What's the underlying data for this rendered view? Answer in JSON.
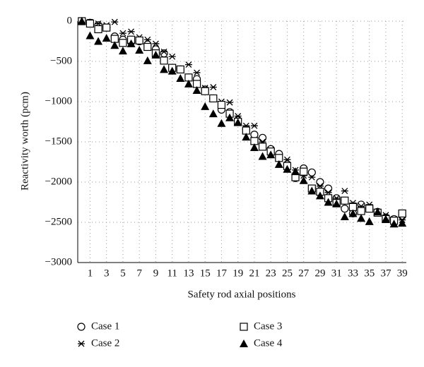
{
  "chart_data": {
    "type": "scatter",
    "x_label": "Safety rod axial positions",
    "y_label": "Reactivity worth (pcm)",
    "x": [
      0,
      1,
      2,
      3,
      4,
      5,
      6,
      7,
      8,
      9,
      10,
      11,
      12,
      13,
      14,
      15,
      16,
      17,
      18,
      19,
      20,
      21,
      22,
      23,
      24,
      25,
      26,
      27,
      28,
      29,
      30,
      31,
      32,
      33,
      34,
      35,
      36,
      37,
      38,
      39
    ],
    "xlim": [
      -0.5,
      39.5
    ],
    "xticks": [
      1,
      3,
      5,
      7,
      9,
      11,
      13,
      15,
      17,
      19,
      21,
      23,
      25,
      27,
      29,
      31,
      33,
      35,
      37,
      39
    ],
    "ylim": [
      -3000,
      0
    ],
    "yticks": [
      {
        "value": -3000,
        "label": "−3000"
      },
      {
        "value": -2500,
        "label": "−2500"
      },
      {
        "value": -2000,
        "label": "−2000"
      },
      {
        "value": -1500,
        "label": "−1500"
      },
      {
        "value": -1000,
        "label": "−1000"
      },
      {
        "value": -500,
        "label": "−500"
      },
      0
    ],
    "grid": true,
    "legend": "bottom",
    "series": [
      {
        "name": "Case 1",
        "color": "#000000",
        "marker": "circle",
        "values": [
          0,
          -20,
          -50,
          -80,
          -190,
          -230,
          -260,
          -250,
          -290,
          -350,
          -400,
          -580,
          -600,
          -700,
          -720,
          -850,
          -960,
          -1100,
          -1130,
          -1230,
          -1340,
          -1410,
          -1450,
          -1590,
          -1650,
          -1780,
          -1950,
          -1830,
          -1880,
          -2000,
          -2080,
          -2200,
          -2330,
          -2390,
          -2280,
          -2320,
          -2370,
          -2440,
          -2460,
          -2420
        ]
      },
      {
        "name": "Case 2",
        "color": "#000000",
        "marker": "star",
        "values": [
          0,
          -10,
          -30,
          -50,
          -10,
          -150,
          -130,
          -200,
          -230,
          -280,
          -380,
          -440,
          -610,
          -540,
          -640,
          -830,
          -820,
          -1000,
          -1010,
          -1180,
          -1300,
          -1300,
          -1500,
          -1600,
          -1700,
          -1720,
          -1850,
          -1920,
          -1940,
          -2050,
          -2130,
          -2200,
          -2110,
          -2260,
          -2300,
          -2280,
          -2370,
          -2410,
          -2460,
          -2470
        ]
      },
      {
        "name": "Case 3",
        "color": "#000000",
        "marker": "square",
        "values": [
          0,
          -30,
          -100,
          -80,
          -220,
          -270,
          -230,
          -240,
          -320,
          -400,
          -490,
          -580,
          -600,
          -700,
          -780,
          -870,
          -960,
          -1040,
          -1150,
          -1250,
          -1360,
          -1490,
          -1560,
          -1620,
          -1700,
          -1800,
          -1940,
          -1870,
          -2080,
          -2120,
          -2200,
          -2260,
          -2230,
          -2310,
          -2360,
          -2330,
          -2380,
          -2460,
          -2480,
          -2390
        ]
      },
      {
        "name": "Case 4",
        "color": "#000000",
        "marker": "triangle",
        "values": [
          0,
          -180,
          -250,
          -210,
          -300,
          -370,
          -280,
          -360,
          -490,
          -420,
          -600,
          -620,
          -710,
          -780,
          -860,
          -1060,
          -1150,
          -1270,
          -1200,
          -1260,
          -1440,
          -1570,
          -1680,
          -1660,
          -1780,
          -1840,
          -1870,
          -1980,
          -2110,
          -2170,
          -2250,
          -2270,
          -2430,
          -2390,
          -2450,
          -2490,
          -2370,
          -2460,
          -2520,
          -2510
        ]
      }
    ]
  }
}
